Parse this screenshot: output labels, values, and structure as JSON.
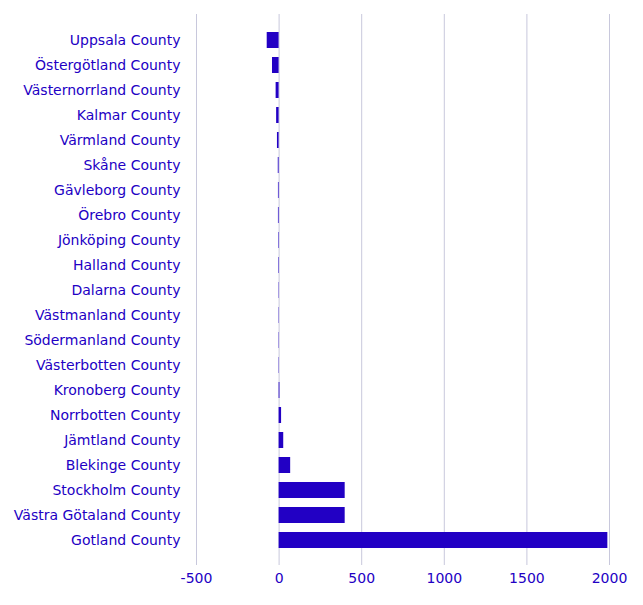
{
  "chart_data": {
    "type": "bar",
    "orientation": "horizontal",
    "grid": true,
    "color": "#2200c4",
    "categories": [
      "Uppsala County",
      "Östergötland County",
      "Västernorrland County",
      "Kalmar County",
      "Värmland County",
      "Skåne County",
      "Gävleborg County",
      "Örebro County",
      "Jönköping County",
      "Halland County",
      "Dalarna County",
      "Västmanland County",
      "Södermanland County",
      "Västerbotten County",
      "Kronoberg County",
      "Norrbotten County",
      "Jämtland County",
      "Blekinge County",
      "Stockholm County",
      "Västra Götaland County",
      "Gotland County"
    ],
    "values": [
      -72,
      -40,
      -18,
      -15,
      -10,
      -5,
      -4,
      -4,
      -3,
      -3,
      -2,
      -2,
      -2,
      2,
      5,
      15,
      28,
      70,
      400,
      400,
      1990
    ],
    "xlim": [
      -500,
      2000
    ],
    "xticks": [
      -500,
      0,
      500,
      1000,
      1500,
      2000
    ]
  }
}
